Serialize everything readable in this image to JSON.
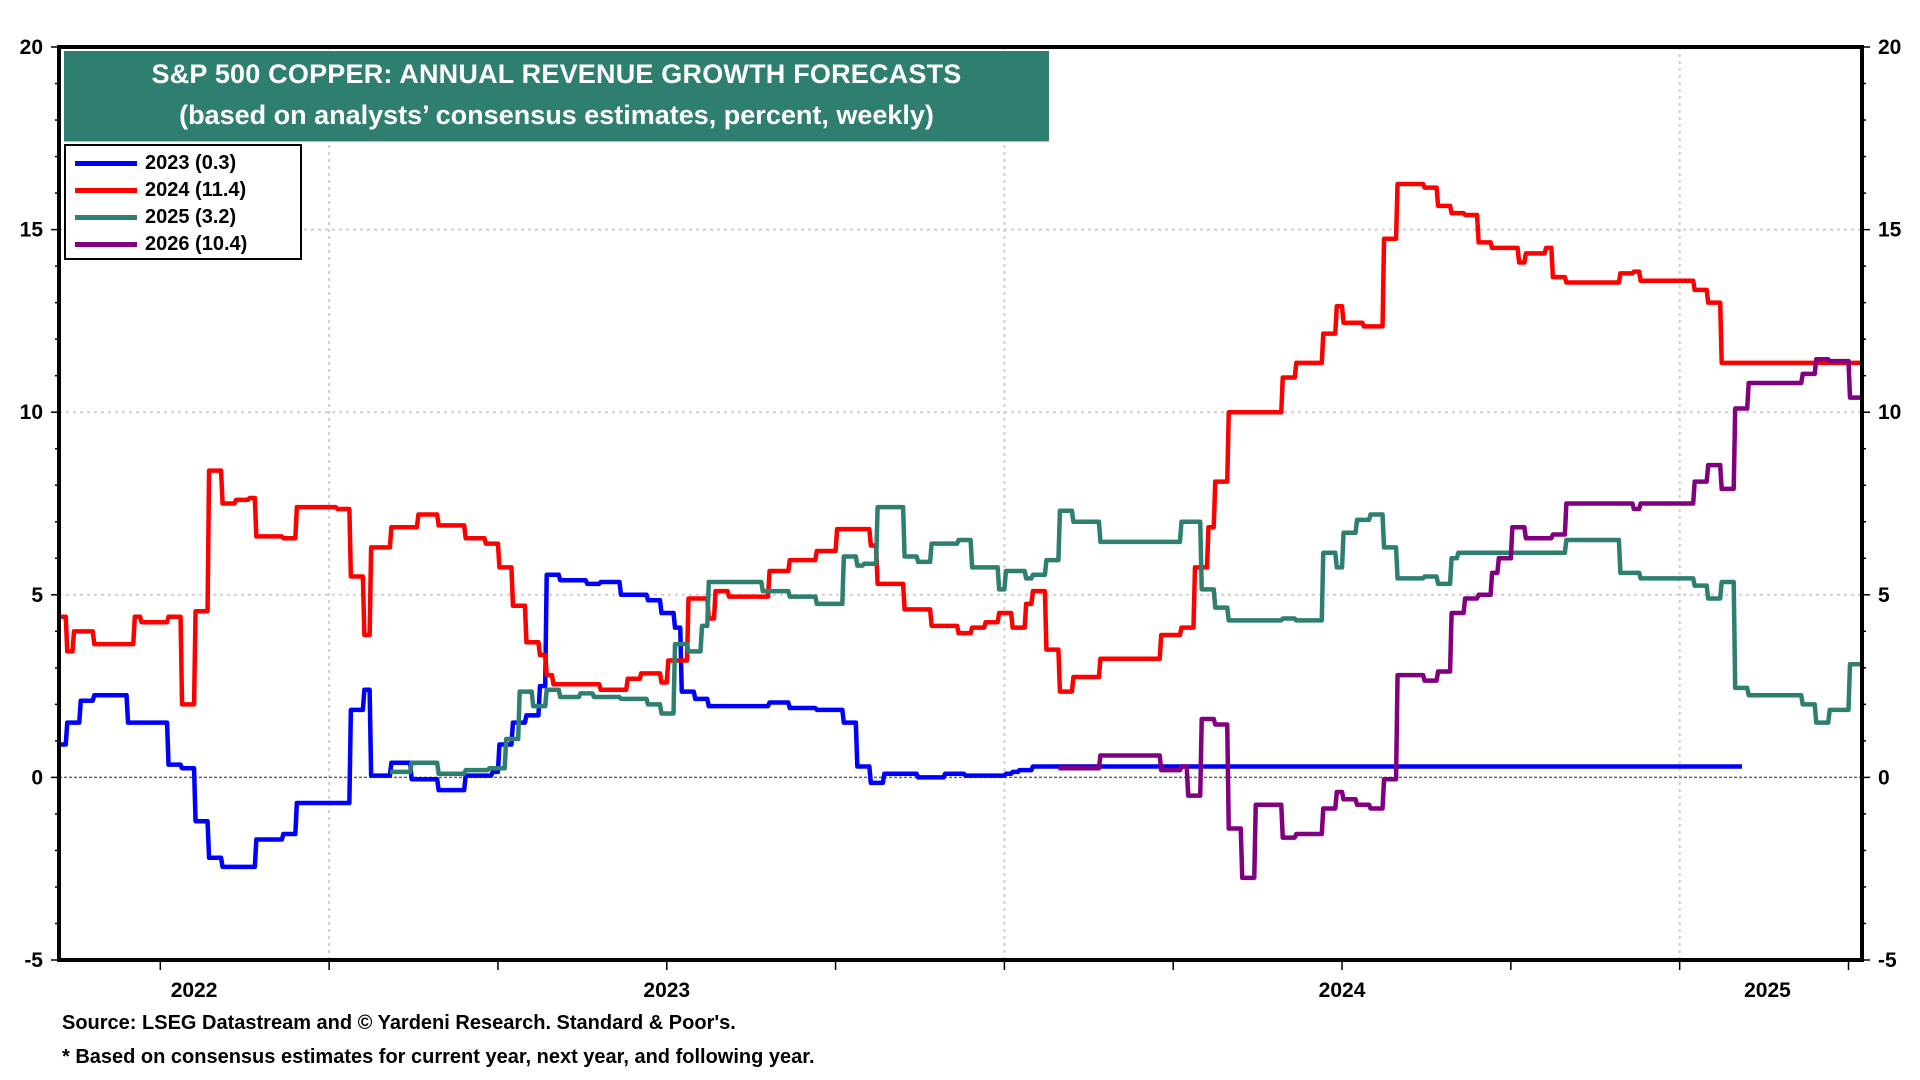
{
  "chart_data": {
    "type": "line",
    "title": "S&P 500 COPPER: ANNUAL REVENUE GROWTH FORECASTS",
    "subtitle": "(based on analysts’ consensus estimates, percent, weekly)",
    "xlabel": "",
    "ylabel": "",
    "x_units": "decimal year",
    "xlim": [
      2022.6,
      2025.27
    ],
    "ylim": [
      -5,
      20
    ],
    "y_ticks": [
      -5,
      0,
      5,
      10,
      15,
      20
    ],
    "y_tick_labels": [
      "-5",
      "0",
      "5",
      "10",
      "15",
      "20"
    ],
    "x_tick_labels": [
      {
        "label": "2022",
        "x": 2022.8
      },
      {
        "label": "2023",
        "x": 2023.5
      },
      {
        "label": "2024",
        "x": 2024.5
      },
      {
        "label": "2025",
        "x": 2025.13
      }
    ],
    "grid": true,
    "reference_line": 0,
    "legend_position": "top-left",
    "step": true,
    "series": [
      {
        "name": "2023 (0.3)",
        "color": "#0000ff",
        "points": [
          [
            2022.6,
            0.9
          ],
          [
            2022.61,
            1.5
          ],
          [
            2022.63,
            2.1
          ],
          [
            2022.65,
            2.25
          ],
          [
            2022.7,
            1.5
          ],
          [
            2022.76,
            0.35
          ],
          [
            2022.78,
            0.25
          ],
          [
            2022.8,
            -1.2
          ],
          [
            2022.82,
            -2.2
          ],
          [
            2022.84,
            -2.45
          ],
          [
            2022.89,
            -1.7
          ],
          [
            2022.93,
            -1.55
          ],
          [
            2022.95,
            -0.7
          ],
          [
            2023.03,
            1.85
          ],
          [
            2023.05,
            2.4
          ],
          [
            2023.06,
            0.05
          ],
          [
            2023.09,
            0.4
          ],
          [
            2023.12,
            -0.05
          ],
          [
            2023.16,
            -0.35
          ],
          [
            2023.2,
            0.05
          ],
          [
            2023.24,
            0.15
          ],
          [
            2023.25,
            0.9
          ],
          [
            2023.27,
            1.5
          ],
          [
            2023.29,
            1.7
          ],
          [
            2023.31,
            2.5
          ],
          [
            2023.32,
            5.55
          ],
          [
            2023.34,
            5.4
          ],
          [
            2023.38,
            5.3
          ],
          [
            2023.4,
            5.35
          ],
          [
            2023.43,
            5.0
          ],
          [
            2023.47,
            4.85
          ],
          [
            2023.49,
            4.5
          ],
          [
            2023.51,
            4.1
          ],
          [
            2023.52,
            2.35
          ],
          [
            2023.54,
            2.15
          ],
          [
            2023.56,
            1.95
          ],
          [
            2023.65,
            2.05
          ],
          [
            2023.68,
            1.9
          ],
          [
            2023.72,
            1.85
          ],
          [
            2023.76,
            1.5
          ],
          [
            2023.78,
            0.3
          ],
          [
            2023.8,
            -0.15
          ],
          [
            2023.82,
            0.1
          ],
          [
            2023.87,
            0.0
          ],
          [
            2023.91,
            0.1
          ],
          [
            2023.94,
            0.05
          ],
          [
            2024.0,
            0.1
          ],
          [
            2024.01,
            0.15
          ],
          [
            2024.02,
            0.2
          ],
          [
            2024.04,
            0.3
          ],
          [
            2025.09,
            0.3
          ]
        ]
      },
      {
        "name": "2024 (11.4)",
        "color": "#ff0000",
        "points": [
          [
            2022.6,
            4.4
          ],
          [
            2022.61,
            3.45
          ],
          [
            2022.62,
            4.0
          ],
          [
            2022.65,
            3.65
          ],
          [
            2022.71,
            4.4
          ],
          [
            2022.72,
            4.25
          ],
          [
            2022.76,
            4.4
          ],
          [
            2022.78,
            2.0
          ],
          [
            2022.8,
            4.55
          ],
          [
            2022.82,
            8.4
          ],
          [
            2022.84,
            7.5
          ],
          [
            2022.86,
            7.6
          ],
          [
            2022.88,
            7.65
          ],
          [
            2022.89,
            6.6
          ],
          [
            2022.93,
            6.55
          ],
          [
            2022.95,
            7.4
          ],
          [
            2023.01,
            7.35
          ],
          [
            2023.03,
            5.5
          ],
          [
            2023.05,
            3.9
          ],
          [
            2023.06,
            6.3
          ],
          [
            2023.09,
            6.85
          ],
          [
            2023.13,
            7.2
          ],
          [
            2023.16,
            6.9
          ],
          [
            2023.2,
            6.55
          ],
          [
            2023.23,
            6.4
          ],
          [
            2023.25,
            5.75
          ],
          [
            2023.27,
            4.7
          ],
          [
            2023.29,
            3.7
          ],
          [
            2023.31,
            3.35
          ],
          [
            2023.32,
            2.8
          ],
          [
            2023.33,
            2.55
          ],
          [
            2023.4,
            2.4
          ],
          [
            2023.44,
            2.7
          ],
          [
            2023.46,
            2.85
          ],
          [
            2023.49,
            2.6
          ],
          [
            2023.5,
            3.2
          ],
          [
            2023.53,
            4.9
          ],
          [
            2023.56,
            4.35
          ],
          [
            2023.57,
            5.1
          ],
          [
            2023.59,
            4.95
          ],
          [
            2023.65,
            5.65
          ],
          [
            2023.68,
            5.95
          ],
          [
            2023.72,
            6.2
          ],
          [
            2023.75,
            6.8
          ],
          [
            2023.8,
            6.35
          ],
          [
            2023.81,
            5.3
          ],
          [
            2023.85,
            4.6
          ],
          [
            2023.89,
            4.15
          ],
          [
            2023.93,
            3.95
          ],
          [
            2023.95,
            4.1
          ],
          [
            2023.97,
            4.25
          ],
          [
            2023.99,
            4.5
          ],
          [
            2024.01,
            4.1
          ],
          [
            2024.03,
            4.75
          ],
          [
            2024.04,
            5.1
          ],
          [
            2024.06,
            3.5
          ],
          [
            2024.08,
            2.35
          ],
          [
            2024.1,
            2.75
          ],
          [
            2024.14,
            3.25
          ],
          [
            2024.23,
            3.9
          ],
          [
            2024.26,
            4.1
          ],
          [
            2024.28,
            5.75
          ],
          [
            2024.3,
            6.85
          ],
          [
            2024.31,
            8.1
          ],
          [
            2024.33,
            10.0
          ],
          [
            2024.41,
            10.95
          ],
          [
            2024.43,
            11.35
          ],
          [
            2024.47,
            12.15
          ],
          [
            2024.49,
            12.9
          ],
          [
            2024.5,
            12.45
          ],
          [
            2024.53,
            12.35
          ],
          [
            2024.56,
            14.75
          ],
          [
            2024.58,
            16.25
          ],
          [
            2024.62,
            16.15
          ],
          [
            2024.64,
            15.65
          ],
          [
            2024.66,
            15.45
          ],
          [
            2024.68,
            15.4
          ],
          [
            2024.7,
            14.65
          ],
          [
            2024.72,
            14.5
          ],
          [
            2024.76,
            14.1
          ],
          [
            2024.77,
            14.35
          ],
          [
            2024.8,
            14.5
          ],
          [
            2024.81,
            13.7
          ],
          [
            2024.83,
            13.55
          ],
          [
            2024.91,
            13.8
          ],
          [
            2024.93,
            13.85
          ],
          [
            2024.94,
            13.6
          ],
          [
            2025.02,
            13.35
          ],
          [
            2025.04,
            13.0
          ],
          [
            2025.06,
            11.35
          ],
          [
            2025.27,
            11.35
          ]
        ]
      },
      {
        "name": "2025 (3.2)",
        "color": "#2e7f70",
        "points": [
          [
            2023.09,
            0.15
          ],
          [
            2023.12,
            0.4
          ],
          [
            2023.16,
            0.1
          ],
          [
            2023.2,
            0.2
          ],
          [
            2023.235,
            0.25
          ],
          [
            2023.26,
            1.05
          ],
          [
            2023.28,
            2.35
          ],
          [
            2023.3,
            1.95
          ],
          [
            2023.32,
            2.4
          ],
          [
            2023.34,
            2.2
          ],
          [
            2023.37,
            2.3
          ],
          [
            2023.39,
            2.2
          ],
          [
            2023.43,
            2.15
          ],
          [
            2023.47,
            2.0
          ],
          [
            2023.49,
            1.75
          ],
          [
            2023.51,
            3.65
          ],
          [
            2023.53,
            3.45
          ],
          [
            2023.55,
            4.15
          ],
          [
            2023.56,
            5.35
          ],
          [
            2023.64,
            5.1
          ],
          [
            2023.68,
            4.95
          ],
          [
            2023.72,
            4.75
          ],
          [
            2023.76,
            6.05
          ],
          [
            2023.78,
            5.8
          ],
          [
            2023.79,
            5.85
          ],
          [
            2023.81,
            7.4
          ],
          [
            2023.85,
            6.05
          ],
          [
            2023.87,
            5.9
          ],
          [
            2023.89,
            6.4
          ],
          [
            2023.93,
            6.5
          ],
          [
            2023.95,
            5.75
          ],
          [
            2023.99,
            5.15
          ],
          [
            2024.0,
            5.65
          ],
          [
            2024.03,
            5.45
          ],
          [
            2024.04,
            5.55
          ],
          [
            2024.06,
            5.95
          ],
          [
            2024.08,
            7.3
          ],
          [
            2024.1,
            7.0
          ],
          [
            2024.14,
            6.45
          ],
          [
            2024.26,
            7.0
          ],
          [
            2024.29,
            5.15
          ],
          [
            2024.31,
            4.65
          ],
          [
            2024.33,
            4.3
          ],
          [
            2024.41,
            4.35
          ],
          [
            2024.43,
            4.3
          ],
          [
            2024.47,
            6.15
          ],
          [
            2024.49,
            5.75
          ],
          [
            2024.5,
            6.7
          ],
          [
            2024.52,
            7.05
          ],
          [
            2024.54,
            7.2
          ],
          [
            2024.56,
            6.3
          ],
          [
            2024.58,
            5.45
          ],
          [
            2024.62,
            5.5
          ],
          [
            2024.64,
            5.3
          ],
          [
            2024.66,
            6.0
          ],
          [
            2024.67,
            6.15
          ],
          [
            2024.83,
            6.5
          ],
          [
            2024.91,
            5.6
          ],
          [
            2024.94,
            5.45
          ],
          [
            2025.02,
            5.25
          ],
          [
            2025.04,
            4.9
          ],
          [
            2025.06,
            5.35
          ],
          [
            2025.08,
            2.45
          ],
          [
            2025.1,
            2.25
          ],
          [
            2025.18,
            2.0
          ],
          [
            2025.2,
            1.5
          ],
          [
            2025.22,
            1.85
          ],
          [
            2025.25,
            3.1
          ],
          [
            2025.27,
            3.1
          ]
        ]
      },
      {
        "name": "2026 (10.4)",
        "color": "#800080",
        "points": [
          [
            2024.08,
            0.25
          ],
          [
            2024.14,
            0.6
          ],
          [
            2024.23,
            0.2
          ],
          [
            2024.26,
            0.3
          ],
          [
            2024.27,
            -0.5
          ],
          [
            2024.29,
            1.6
          ],
          [
            2024.31,
            1.45
          ],
          [
            2024.33,
            -1.4
          ],
          [
            2024.35,
            -2.75
          ],
          [
            2024.37,
            -0.75
          ],
          [
            2024.41,
            -1.65
          ],
          [
            2024.43,
            -1.55
          ],
          [
            2024.47,
            -0.85
          ],
          [
            2024.49,
            -0.4
          ],
          [
            2024.5,
            -0.6
          ],
          [
            2024.52,
            -0.75
          ],
          [
            2024.54,
            -0.85
          ],
          [
            2024.56,
            -0.05
          ],
          [
            2024.58,
            2.8
          ],
          [
            2024.62,
            2.65
          ],
          [
            2024.64,
            2.9
          ],
          [
            2024.66,
            4.5
          ],
          [
            2024.68,
            4.9
          ],
          [
            2024.7,
            5.0
          ],
          [
            2024.72,
            5.6
          ],
          [
            2024.73,
            6.0
          ],
          [
            2024.75,
            6.85
          ],
          [
            2024.77,
            6.55
          ],
          [
            2024.81,
            6.65
          ],
          [
            2024.83,
            7.5
          ],
          [
            2024.93,
            7.35
          ],
          [
            2024.94,
            7.5
          ],
          [
            2025.02,
            8.1
          ],
          [
            2025.04,
            8.55
          ],
          [
            2025.06,
            7.9
          ],
          [
            2025.08,
            10.1
          ],
          [
            2025.1,
            10.8
          ],
          [
            2025.18,
            11.05
          ],
          [
            2025.2,
            11.45
          ],
          [
            2025.22,
            11.4
          ],
          [
            2025.25,
            10.4
          ],
          [
            2025.27,
            10.4
          ]
        ]
      }
    ],
    "source": "Source: LSEG Datastream and © Yardeni Research. Standard & Poor's.",
    "note": "* Based on consensus estimates for current year, next year, and following year."
  }
}
